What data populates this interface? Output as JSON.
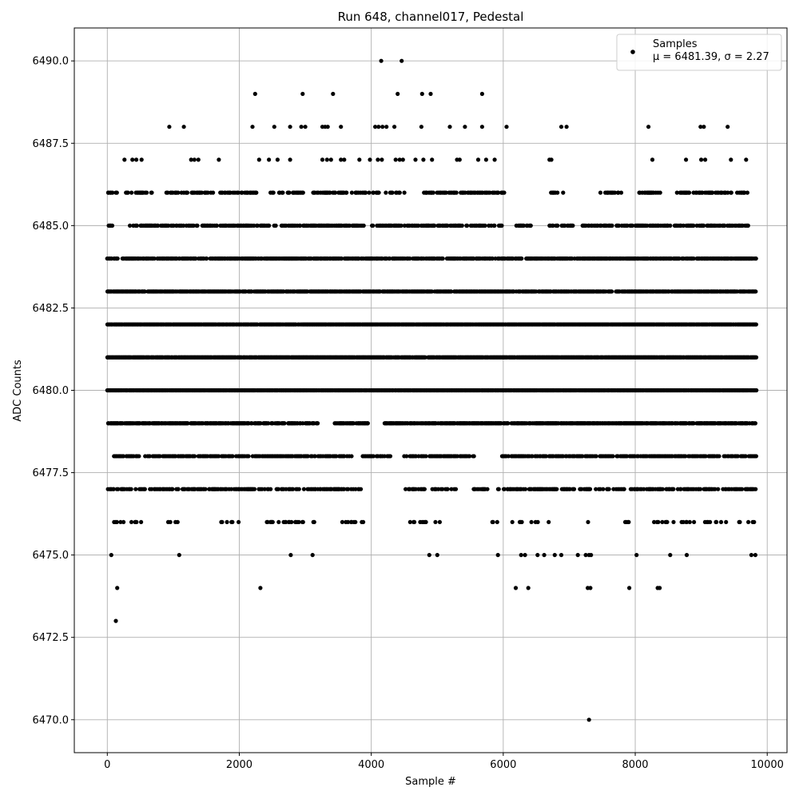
{
  "chart_data": {
    "type": "scatter",
    "title": "Run 648, channel017, Pedestal",
    "xlabel": "Sample #",
    "ylabel": "ADC Counts",
    "xlim": [
      -500,
      10300
    ],
    "ylim": [
      6469.0,
      6491.0
    ],
    "x_ticks": [
      0,
      2000,
      4000,
      6000,
      8000,
      10000
    ],
    "x_tick_labels": [
      "0",
      "2000",
      "4000",
      "6000",
      "8000",
      "10000"
    ],
    "y_ticks": [
      6470.0,
      6472.5,
      6475.0,
      6477.5,
      6480.0,
      6482.5,
      6485.0,
      6487.5,
      6490.0
    ],
    "y_tick_labels": [
      "6470.0",
      "6472.5",
      "6475.0",
      "6477.5",
      "6480.0",
      "6482.5",
      "6485.0",
      "6487.5",
      "6490.0"
    ],
    "grid": true,
    "legend": {
      "placement": "top-right",
      "entries": [
        {
          "label": "Samples",
          "stats": "μ = 6481.39, σ = 2.27"
        }
      ]
    },
    "series": [
      {
        "name": "Samples",
        "color": "#000000",
        "marker": "circle",
        "points": [
          [
            130,
            6473
          ],
          [
            2320,
            6474
          ],
          [
            150,
            6474
          ],
          [
            6190,
            6474
          ],
          [
            6380,
            6474
          ],
          [
            7280,
            6474
          ],
          [
            7320,
            6474
          ],
          [
            7910,
            6474
          ],
          [
            8340,
            6474
          ],
          [
            8370,
            6474
          ],
          [
            7300,
            6470
          ],
          [
            60,
            6475
          ],
          [
            1090,
            6475
          ],
          [
            2780,
            6475
          ],
          [
            3110,
            6475
          ],
          [
            4880,
            6475
          ],
          [
            5000,
            6475
          ],
          [
            5920,
            6475
          ],
          [
            6270,
            6475
          ],
          [
            6330,
            6475
          ],
          [
            6520,
            6475
          ],
          [
            6620,
            6475
          ],
          [
            6780,
            6475
          ],
          [
            6880,
            6475
          ],
          [
            7130,
            6475
          ],
          [
            7250,
            6475
          ],
          [
            7300,
            6475
          ],
          [
            7330,
            6475
          ],
          [
            8020,
            6475
          ],
          [
            8530,
            6475
          ],
          [
            8780,
            6475
          ],
          [
            9760,
            6475
          ],
          [
            9820,
            6475
          ],
          [
            4150,
            6490
          ],
          [
            4460,
            6490
          ],
          [
            2240,
            6489
          ],
          [
            2960,
            6489
          ],
          [
            3420,
            6489
          ],
          [
            4400,
            6489
          ],
          [
            4770,
            6489
          ],
          [
            4900,
            6489
          ],
          [
            5680,
            6489
          ],
          [
            940,
            6488
          ],
          [
            1160,
            6488
          ],
          [
            2200,
            6488
          ],
          [
            2530,
            6488
          ],
          [
            2770,
            6488
          ],
          [
            2940,
            6488
          ],
          [
            3000,
            6488
          ],
          [
            3260,
            6488
          ],
          [
            3300,
            6488
          ],
          [
            3340,
            6488
          ],
          [
            3540,
            6488
          ],
          [
            4060,
            6488
          ],
          [
            4110,
            6488
          ],
          [
            4170,
            6488
          ],
          [
            4230,
            6488
          ],
          [
            4350,
            6488
          ],
          [
            4760,
            6488
          ],
          [
            5190,
            6488
          ],
          [
            5420,
            6488
          ],
          [
            5680,
            6488
          ],
          [
            6050,
            6488
          ],
          [
            6880,
            6488
          ],
          [
            6960,
            6488
          ],
          [
            8200,
            6488
          ],
          [
            8990,
            6488
          ],
          [
            9040,
            6488
          ],
          [
            9400,
            6488
          ],
          [
            260,
            6487
          ],
          [
            380,
            6487
          ],
          [
            440,
            6487
          ],
          [
            520,
            6487
          ],
          [
            1270,
            6487
          ],
          [
            1320,
            6487
          ],
          [
            1380,
            6487
          ],
          [
            1690,
            6487
          ],
          [
            2300,
            6487
          ],
          [
            2450,
            6487
          ],
          [
            2580,
            6487
          ],
          [
            2770,
            6487
          ],
          [
            3260,
            6487
          ],
          [
            3330,
            6487
          ],
          [
            3390,
            6487
          ],
          [
            3540,
            6487
          ],
          [
            3590,
            6487
          ],
          [
            3820,
            6487
          ],
          [
            3980,
            6487
          ],
          [
            4100,
            6487
          ],
          [
            4160,
            6487
          ],
          [
            4370,
            6487
          ],
          [
            4430,
            6487
          ],
          [
            4480,
            6487
          ],
          [
            4670,
            6487
          ],
          [
            4790,
            6487
          ],
          [
            4920,
            6487
          ],
          [
            5300,
            6487
          ],
          [
            5340,
            6487
          ],
          [
            5620,
            6487
          ],
          [
            5740,
            6487
          ],
          [
            5870,
            6487
          ],
          [
            6700,
            6487
          ],
          [
            6730,
            6487
          ],
          [
            8260,
            6487
          ],
          [
            8770,
            6487
          ],
          [
            9000,
            6487
          ],
          [
            9060,
            6487
          ],
          [
            9450,
            6487
          ],
          [
            9680,
            6487
          ]
        ],
        "bands": [
          {
            "y": 6486,
            "density": 0.42,
            "segments": [
              [
                0,
                150
              ],
              [
                280,
                680
              ],
              [
                840,
                1600
              ],
              [
                1700,
                2280
              ],
              [
                2460,
                2980
              ],
              [
                3100,
                4440
              ],
              [
                4480,
                4550
              ],
              [
                4800,
                5060
              ],
              [
                5080,
                6060
              ],
              [
                6700,
                6930
              ],
              [
                7460,
                7800
              ],
              [
                8060,
                8380
              ],
              [
                8600,
                9700
              ]
            ]
          },
          {
            "y": 6485,
            "density": 0.58,
            "segments": [
              [
                0,
                80
              ],
              [
                330,
                1380
              ],
              [
                1440,
                3940
              ],
              [
                4000,
                5980
              ],
              [
                6200,
                6420
              ],
              [
                6680,
                7060
              ],
              [
                7200,
                8390
              ],
              [
                8420,
                9720
              ]
            ]
          },
          {
            "y": 6484,
            "density": 0.72,
            "segments": [
              [
                0,
                160
              ],
              [
                230,
                9840
              ]
            ]
          },
          {
            "y": 6483,
            "density": 0.85,
            "segments": [
              [
                0,
                9840
              ]
            ]
          },
          {
            "y": 6482,
            "density": 0.92,
            "segments": [
              [
                0,
                9840
              ]
            ]
          },
          {
            "y": 6481,
            "density": 0.95,
            "segments": [
              [
                0,
                9840
              ]
            ]
          },
          {
            "y": 6480,
            "density": 0.95,
            "segments": [
              [
                0,
                9840
              ]
            ]
          },
          {
            "y": 6479,
            "density": 0.75,
            "segments": [
              [
                0,
                3200
              ],
              [
                3400,
                3960
              ],
              [
                4200,
                9840
              ]
            ]
          },
          {
            "y": 6478,
            "density": 0.55,
            "segments": [
              [
                70,
                3700
              ],
              [
                3860,
                4300
              ],
              [
                4500,
                5620
              ],
              [
                5980,
                9840
              ]
            ]
          },
          {
            "y": 6477,
            "density": 0.45,
            "segments": [
              [
                0,
                3840
              ],
              [
                4520,
                5300
              ],
              [
                5540,
                5780
              ],
              [
                5920,
                9840
              ]
            ]
          },
          {
            "y": 6476,
            "density": 0.22,
            "segments": [
              [
                80,
                540
              ],
              [
                920,
                1160
              ],
              [
                1640,
                2000
              ],
              [
                2320,
                3180
              ],
              [
                3560,
                3980
              ],
              [
                4520,
                5040
              ],
              [
                5800,
                6000
              ],
              [
                6140,
                6700
              ],
              [
                7200,
                7380
              ],
              [
                7680,
                8020
              ],
              [
                8220,
                9840
              ]
            ]
          }
        ]
      }
    ]
  }
}
